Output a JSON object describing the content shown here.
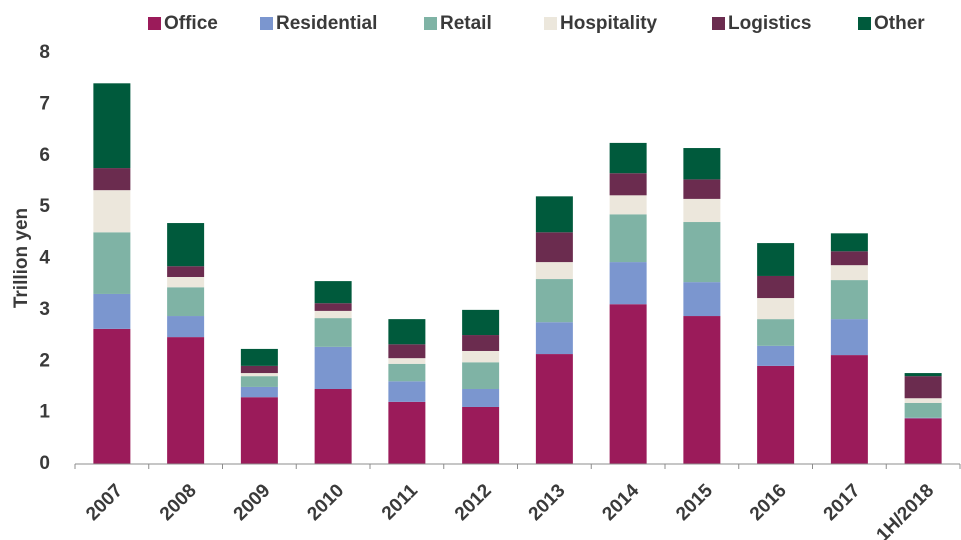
{
  "chart_data": {
    "type": "stacked_bar",
    "y_label": "Trillion yen",
    "categories": [
      "2007",
      "2008",
      "2009",
      "2010",
      "2011",
      "2012",
      "2013",
      "2014",
      "2015",
      "2016",
      "2017",
      "1H/2018"
    ],
    "series": [
      {
        "name": "Office",
        "color": "#9b1b5a",
        "values": [
          2.63,
          2.47,
          1.3,
          1.46,
          1.21,
          1.11,
          2.14,
          3.11,
          2.88,
          1.91,
          2.12,
          0.89
        ]
      },
      {
        "name": "Residential",
        "color": "#7b96cf",
        "values": [
          0.68,
          0.41,
          0.2,
          0.82,
          0.4,
          0.35,
          0.62,
          0.82,
          0.66,
          0.39,
          0.7,
          0.01
        ]
      },
      {
        "name": "Retail",
        "color": "#7fb3a5",
        "values": [
          1.2,
          0.56,
          0.21,
          0.56,
          0.34,
          0.52,
          0.84,
          0.93,
          1.17,
          0.52,
          0.76,
          0.29
        ]
      },
      {
        "name": "Hospitality",
        "color": "#ece7dc",
        "values": [
          0.82,
          0.2,
          0.06,
          0.14,
          0.11,
          0.22,
          0.33,
          0.37,
          0.45,
          0.41,
          0.29,
          0.09
        ]
      },
      {
        "name": "Logistics",
        "color": "#6b2c4f",
        "values": [
          0.43,
          0.21,
          0.14,
          0.15,
          0.27,
          0.31,
          0.58,
          0.43,
          0.38,
          0.43,
          0.27,
          0.43
        ]
      },
      {
        "name": "Other",
        "color": "#005a3c",
        "values": [
          1.65,
          0.84,
          0.33,
          0.43,
          0.49,
          0.49,
          0.7,
          0.59,
          0.61,
          0.64,
          0.35,
          0.06
        ]
      }
    ],
    "ylim": [
      0,
      8
    ],
    "yticks": [
      0,
      1,
      2,
      3,
      4,
      5,
      6,
      7,
      8
    ],
    "legend": "top"
  }
}
